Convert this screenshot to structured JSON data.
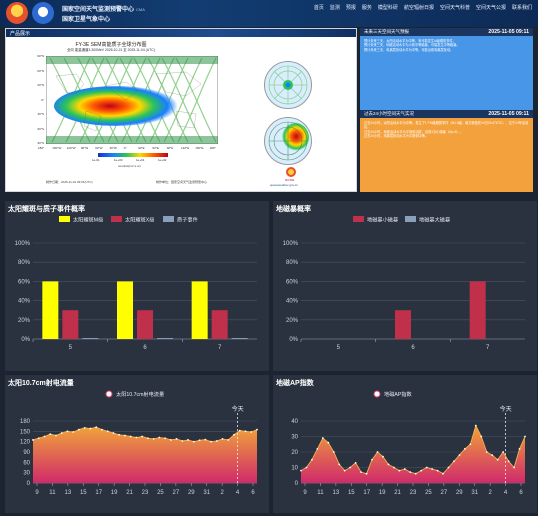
{
  "header": {
    "center_name_1": "国家空间天气监测预警中心",
    "center_name_1_sub": "CMA",
    "center_name_2": "国家卫星气象中心",
    "nav": [
      "首页",
      "监测",
      "预报",
      "服务",
      "模型科研",
      "航空辐射日报",
      "空间天气科普",
      "空间天气公报",
      "联系我们"
    ]
  },
  "product": {
    "tab_label": "产品展示",
    "figure_title": "FY-3E SEM高能质子全球分布图",
    "figure_subtitle": "全向    能量通道3-300MeV    2025-10-21 至 2025-11-04 (UTC)",
    "lat_ticks": [
      "90°N",
      "60°N",
      "30°N",
      "0°",
      "30°S",
      "60°S",
      "90°S"
    ],
    "lon_ticks": [
      "180°",
      "150°W",
      "120°W",
      "90°W",
      "60°W",
      "30°W",
      "0°",
      "30°E",
      "60°E",
      "90°E",
      "120°E",
      "150°E",
      "180°"
    ],
    "colorbar_ticks": [
      "1e-01",
      "1e+00",
      "1e+01",
      "1e+02"
    ],
    "colorbar_label": "counts/(cm²·s·sr)",
    "map_footer_left": "制作日期：2025-11-04 09:01(UTC)",
    "map_footer_right": "制作单位：国家空间天气监测预警中心",
    "credit_name": "NCSW",
    "credit_url": "spaceweather.gov.cn"
  },
  "info_cards": [
    {
      "title": "未来三天空间天气预报",
      "date": "2025-11-05 09:11",
      "color": "#4796e8",
      "paragraphs": [
        "预计未来三天，太阳活动水平为中等，有可能发生M级耀斑事件，",
        "预计未来三天，地磁活动水平为小到中等磁暴，可能发生中等磁暴。",
        "预计未来三天，电离层扰动水平为中等，可能出现电离层扰动。"
      ]
    },
    {
      "title": "过去24小时空间天气实况",
      "date": "2025-11-05 09:11",
      "color": "#f3a13c",
      "paragraphs": [
        "过去24小时，太阳活动水平为中等，发生了1个M级耀斑事件（M1.8级，南方峰值在04日03:47UTC），位于13号活动区。",
        "过去24小时，地磁活动水平为平静到活跃，出现1次小磁暴（Kp=5）。",
        "过去24小时，电离层扰动水平为平静到中等。"
      ]
    }
  ],
  "flare_chart": {
    "title": "太阳耀斑与质子事件概率",
    "legend": [
      "太阳耀斑M级",
      "太阳耀斑X级",
      "质子事件"
    ],
    "colors": [
      "#ffff00",
      "#c0304a",
      "#8aa0b8"
    ],
    "y_ticks": [
      "0%",
      "20%",
      "40%",
      "60%",
      "80%",
      "100%"
    ],
    "categories": [
      "5",
      "6",
      "7"
    ],
    "series": [
      {
        "name": "太阳耀斑M级",
        "values": [
          60,
          60,
          60
        ]
      },
      {
        "name": "太阳耀斑X级",
        "values": [
          30,
          30,
          30
        ]
      },
      {
        "name": "质子事件",
        "values": [
          1,
          1,
          1
        ]
      }
    ],
    "ylim": [
      0,
      100
    ]
  },
  "storm_chart": {
    "title": "地磁暴概率",
    "legend": [
      "地磁暴小磁暴",
      "地磁暴大磁暴"
    ],
    "colors": [
      "#c0304a",
      "#8aa0b8"
    ],
    "y_ticks": [
      "0%",
      "20%",
      "40%",
      "60%",
      "80%",
      "100%"
    ],
    "categories": [
      "5",
      "6",
      "7"
    ],
    "series": [
      {
        "name": "地磁暴小磁暴",
        "values": [
          0,
          30,
          60
        ]
      },
      {
        "name": "地磁暴大磁暴",
        "values": [
          0,
          0,
          0
        ]
      }
    ],
    "ylim": [
      0,
      100
    ]
  },
  "f107_chart": {
    "title": "太阳10.7cm射电流量",
    "legend": "太阳10.7cm射电流量",
    "today_label": "今天",
    "y_ticks": [
      "0",
      "30",
      "60",
      "90",
      "120",
      "150",
      "180"
    ],
    "x_ticks": [
      "9",
      "11",
      "13",
      "15",
      "17",
      "19",
      "21",
      "23",
      "25",
      "27",
      "29",
      "31",
      "2",
      "4",
      "6"
    ],
    "ylim": [
      0,
      180
    ],
    "values": [
      125,
      130,
      135,
      142,
      138,
      145,
      150,
      148,
      155,
      160,
      158,
      162,
      155,
      150,
      145,
      140,
      138,
      135,
      132,
      135,
      130,
      128,
      132,
      130,
      125,
      128,
      122,
      125,
      120,
      124,
      126,
      120,
      122,
      128,
      125,
      140,
      152,
      150,
      148,
      155
    ]
  },
  "ap_chart": {
    "title": "地磁AP指数",
    "legend": "地磁AP指数",
    "today_label": "今天",
    "y_ticks": [
      "0",
      "10",
      "20",
      "30",
      "40"
    ],
    "x_ticks": [
      "9",
      "11",
      "13",
      "15",
      "17",
      "19",
      "21",
      "23",
      "25",
      "27",
      "29",
      "31",
      "2",
      "4",
      "6"
    ],
    "ylim": [
      0,
      40
    ],
    "values": [
      8,
      10,
      15,
      22,
      29,
      26,
      20,
      12,
      8,
      10,
      13,
      7,
      6,
      15,
      20,
      17,
      12,
      10,
      8,
      9,
      7,
      6,
      8,
      10,
      9,
      8,
      6,
      10,
      14,
      18,
      22,
      25,
      37,
      30,
      20,
      18,
      15,
      20,
      14,
      10,
      22,
      30
    ]
  }
}
